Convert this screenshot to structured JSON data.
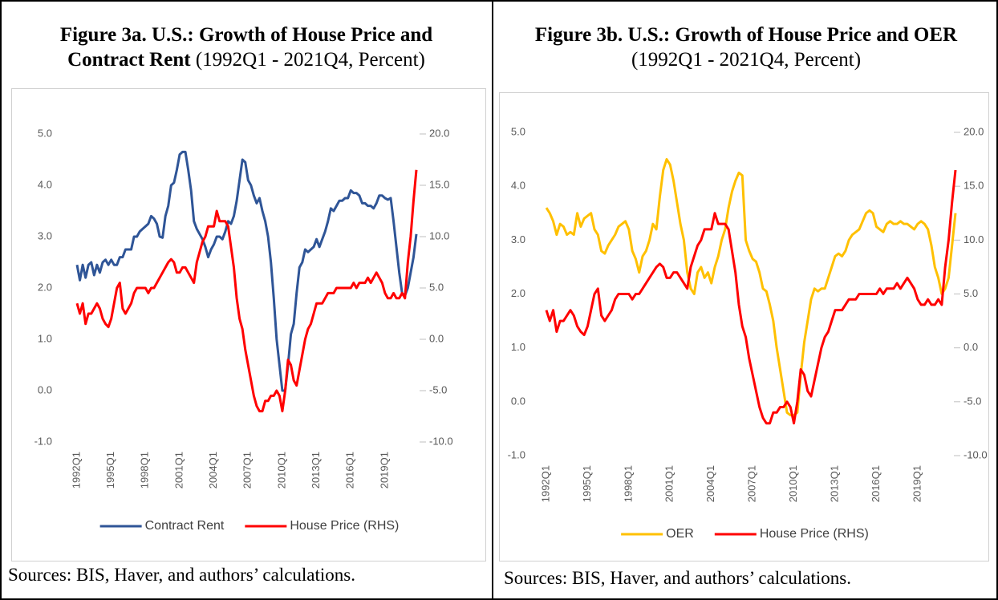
{
  "chart_data": [
    {
      "type": "line",
      "title": "Figure 3a. U.S.: Growth of House Price and Contract Rent",
      "subtitle": "(1992Q1 - 2021Q4, Percent)",
      "source": "Sources: BIS, Haver, and authors’ calculations.",
      "categories": [
        "1992Q1",
        null,
        null,
        null,
        null,
        null,
        null,
        null,
        null,
        null,
        null,
        null,
        "1995Q1",
        null,
        null,
        null,
        null,
        null,
        null,
        null,
        null,
        null,
        null,
        null,
        "1998Q1",
        null,
        null,
        null,
        null,
        null,
        null,
        null,
        null,
        null,
        null,
        null,
        "2001Q1",
        null,
        null,
        null,
        null,
        null,
        null,
        null,
        null,
        null,
        null,
        null,
        "2004Q1",
        null,
        null,
        null,
        null,
        null,
        null,
        null,
        null,
        null,
        null,
        null,
        "2007Q1",
        null,
        null,
        null,
        null,
        null,
        null,
        null,
        null,
        null,
        null,
        null,
        "2010Q1",
        null,
        null,
        null,
        null,
        null,
        null,
        null,
        null,
        null,
        null,
        null,
        "2013Q1",
        null,
        null,
        null,
        null,
        null,
        null,
        null,
        null,
        null,
        null,
        null,
        "2016Q1",
        null,
        null,
        null,
        null,
        null,
        null,
        null,
        null,
        null,
        null,
        null,
        "2019Q1",
        null,
        null,
        null,
        null,
        null,
        null,
        null,
        null,
        null,
        null,
        null
      ],
      "series": [
        {
          "name": "Contract Rent",
          "color": "#2f5597",
          "values": [
            2.45,
            2.15,
            2.45,
            2.2,
            2.45,
            2.5,
            2.25,
            2.45,
            2.3,
            2.5,
            2.55,
            2.45,
            2.55,
            2.45,
            2.45,
            2.6,
            2.6,
            2.75,
            2.75,
            2.75,
            3.0,
            3.0,
            3.1,
            3.15,
            3.2,
            3.25,
            3.4,
            3.35,
            3.25,
            3.0,
            2.98,
            3.4,
            3.6,
            4.0,
            4.05,
            4.3,
            4.6,
            4.65,
            4.65,
            4.3,
            3.9,
            3.3,
            3.15,
            3.05,
            2.95,
            2.8,
            2.6,
            2.75,
            2.85,
            3.0,
            3.0,
            2.95,
            3.1,
            3.3,
            3.25,
            3.4,
            3.7,
            4.1,
            4.5,
            4.45,
            4.1,
            4.0,
            3.8,
            3.65,
            3.75,
            3.5,
            3.3,
            3.0,
            2.5,
            1.8,
            1.0,
            0.5,
            0.0,
            0.0,
            0.5,
            1.1,
            1.3,
            1.9,
            2.4,
            2.5,
            2.75,
            2.7,
            2.75,
            2.8,
            2.95,
            2.8,
            2.95,
            3.1,
            3.3,
            3.55,
            3.5,
            3.6,
            3.7,
            3.7,
            3.75,
            3.75,
            3.9,
            3.85,
            3.85,
            3.8,
            3.65,
            3.65,
            3.6,
            3.6,
            3.55,
            3.65,
            3.8,
            3.8,
            3.75,
            3.72,
            3.75,
            3.3,
            2.8,
            2.3,
            1.9,
            1.85,
            2.0,
            2.3,
            2.6,
            3.05
          ]
        },
        {
          "name": "House Price (RHS)",
          "color": "#ff0000",
          "axis": "y2",
          "values": [
            3.5,
            2.5,
            3.5,
            1.5,
            2.5,
            2.5,
            3.0,
            3.5,
            3.0,
            2.0,
            1.5,
            1.2,
            2.0,
            3.5,
            5.0,
            5.5,
            3.0,
            2.5,
            3.0,
            3.5,
            4.5,
            5.0,
            5.0,
            5.0,
            5.0,
            4.5,
            5.0,
            5.0,
            5.5,
            6.0,
            6.5,
            7.0,
            7.5,
            7.8,
            7.5,
            6.5,
            6.5,
            7.0,
            7.0,
            6.5,
            6.0,
            5.5,
            7.5,
            8.5,
            9.5,
            10.0,
            11.0,
            11.0,
            11.0,
            12.5,
            11.5,
            11.5,
            11.5,
            11.0,
            9.0,
            7.0,
            4.0,
            2.0,
            1.0,
            -1.0,
            -2.5,
            -4.0,
            -5.5,
            -6.5,
            -7.0,
            -7.0,
            -6.0,
            -6.0,
            -5.5,
            -5.5,
            -5.0,
            -5.5,
            -7.0,
            -5.0,
            -2.0,
            -2.5,
            -4.0,
            -4.5,
            -3.0,
            -1.5,
            0.0,
            1.0,
            1.5,
            2.5,
            3.5,
            3.5,
            3.5,
            4.0,
            4.5,
            4.5,
            4.5,
            5.0,
            5.0,
            5.0,
            5.0,
            5.0,
            5.0,
            5.5,
            5.0,
            5.5,
            5.5,
            5.5,
            6.0,
            5.5,
            6.0,
            6.5,
            6.0,
            5.5,
            4.5,
            4.0,
            4.0,
            4.5,
            4.0,
            4.0,
            4.5,
            4.0,
            7.5,
            10.0,
            13.5,
            16.5
          ]
        }
      ],
      "ylim": [
        -1,
        5
      ],
      "yticks": [
        {
          "value": -1,
          "label": "-1.0"
        },
        {
          "value": 0,
          "label": "0.0"
        },
        {
          "value": 1,
          "label": "1.0"
        },
        {
          "value": 2,
          "label": "2.0"
        },
        {
          "value": 3,
          "label": "3.0"
        },
        {
          "value": 4,
          "label": "4.0"
        },
        {
          "value": 5,
          "label": "5.0"
        }
      ],
      "y2lim": [
        -10,
        20
      ],
      "y2ticks": [
        {
          "value": -10,
          "label": "-10.0"
        },
        {
          "value": -5,
          "label": "-5.0"
        },
        {
          "value": 0,
          "label": "0.0"
        },
        {
          "value": 5,
          "label": "5.0"
        },
        {
          "value": 10,
          "label": "10.0"
        },
        {
          "value": 15,
          "label": "15.0"
        },
        {
          "value": 20,
          "label": "20.0"
        }
      ],
      "grid": false,
      "legend": "bottom"
    },
    {
      "type": "line",
      "title": "Figure 3b. U.S.: Growth of House Price and OER",
      "subtitle": "(1992Q1 - 2021Q4, Percent)",
      "source": "Sources: BIS, Haver, and authors’ calculations.",
      "categories": [
        "1992Q1",
        null,
        null,
        null,
        null,
        null,
        null,
        null,
        null,
        null,
        null,
        null,
        "1995Q1",
        null,
        null,
        null,
        null,
        null,
        null,
        null,
        null,
        null,
        null,
        null,
        "1998Q1",
        null,
        null,
        null,
        null,
        null,
        null,
        null,
        null,
        null,
        null,
        null,
        "2001Q1",
        null,
        null,
        null,
        null,
        null,
        null,
        null,
        null,
        null,
        null,
        null,
        "2004Q1",
        null,
        null,
        null,
        null,
        null,
        null,
        null,
        null,
        null,
        null,
        null,
        "2007Q1",
        null,
        null,
        null,
        null,
        null,
        null,
        null,
        null,
        null,
        null,
        null,
        "2010Q1",
        null,
        null,
        null,
        null,
        null,
        null,
        null,
        null,
        null,
        null,
        null,
        "2013Q1",
        null,
        null,
        null,
        null,
        null,
        null,
        null,
        null,
        null,
        null,
        null,
        "2016Q1",
        null,
        null,
        null,
        null,
        null,
        null,
        null,
        null,
        null,
        null,
        null,
        "2019Q1",
        null,
        null,
        null,
        null,
        null,
        null,
        null,
        null,
        null,
        null,
        null
      ],
      "series": [
        {
          "name": "OER",
          "color": "#ffc000",
          "values": [
            3.6,
            3.5,
            3.35,
            3.1,
            3.3,
            3.25,
            3.1,
            3.15,
            3.1,
            3.5,
            3.25,
            3.4,
            3.45,
            3.5,
            3.2,
            3.1,
            2.8,
            2.75,
            2.9,
            3.0,
            3.1,
            3.25,
            3.3,
            3.35,
            3.2,
            2.8,
            2.65,
            2.4,
            2.7,
            2.8,
            3.0,
            3.3,
            3.2,
            3.8,
            4.3,
            4.5,
            4.4,
            4.1,
            3.7,
            3.3,
            3.0,
            2.4,
            2.1,
            2.0,
            2.4,
            2.5,
            2.3,
            2.4,
            2.2,
            2.5,
            2.7,
            3.0,
            3.2,
            3.6,
            3.9,
            4.1,
            4.25,
            4.2,
            3.0,
            2.8,
            2.65,
            2.6,
            2.4,
            2.1,
            2.05,
            1.8,
            1.5,
            1.0,
            0.6,
            0.2,
            -0.2,
            -0.25,
            -0.25,
            -0.2,
            0.5,
            1.1,
            1.5,
            1.9,
            2.1,
            2.05,
            2.1,
            2.1,
            2.3,
            2.5,
            2.7,
            2.75,
            2.7,
            2.8,
            3.0,
            3.1,
            3.15,
            3.2,
            3.35,
            3.5,
            3.55,
            3.5,
            3.25,
            3.2,
            3.15,
            3.3,
            3.35,
            3.3,
            3.3,
            3.35,
            3.3,
            3.3,
            3.25,
            3.2,
            3.3,
            3.35,
            3.3,
            3.2,
            2.9,
            2.5,
            2.3,
            2.0,
            2.1,
            2.3,
            2.9,
            3.5
          ]
        },
        {
          "name": "House Price (RHS)",
          "color": "#ff0000",
          "axis": "y2",
          "values": [
            3.5,
            2.5,
            3.5,
            1.5,
            2.5,
            2.5,
            3.0,
            3.5,
            3.0,
            2.0,
            1.5,
            1.2,
            2.0,
            3.5,
            5.0,
            5.5,
            3.0,
            2.5,
            3.0,
            3.5,
            4.5,
            5.0,
            5.0,
            5.0,
            5.0,
            4.5,
            5.0,
            5.0,
            5.5,
            6.0,
            6.5,
            7.0,
            7.5,
            7.8,
            7.5,
            6.5,
            6.5,
            7.0,
            7.0,
            6.5,
            6.0,
            5.5,
            7.5,
            8.5,
            9.5,
            10.0,
            11.0,
            11.0,
            11.0,
            12.5,
            11.5,
            11.5,
            11.5,
            11.0,
            9.0,
            7.0,
            4.0,
            2.0,
            1.0,
            -1.0,
            -2.5,
            -4.0,
            -5.5,
            -6.5,
            -7.0,
            -7.0,
            -6.0,
            -6.0,
            -5.5,
            -5.5,
            -5.0,
            -5.5,
            -7.0,
            -5.0,
            -2.0,
            -2.5,
            -4.0,
            -4.5,
            -3.0,
            -1.5,
            0.0,
            1.0,
            1.5,
            2.5,
            3.5,
            3.5,
            3.5,
            4.0,
            4.5,
            4.5,
            4.5,
            5.0,
            5.0,
            5.0,
            5.0,
            5.0,
            5.0,
            5.5,
            5.0,
            5.5,
            5.5,
            5.5,
            6.0,
            5.5,
            6.0,
            6.5,
            6.0,
            5.5,
            4.5,
            4.0,
            4.0,
            4.5,
            4.0,
            4.0,
            4.5,
            4.0,
            7.5,
            10.0,
            13.5,
            16.5
          ]
        }
      ],
      "ylim": [
        -1,
        5
      ],
      "yticks": [
        {
          "value": -1,
          "label": "-1.0"
        },
        {
          "value": 0,
          "label": "0.0"
        },
        {
          "value": 1,
          "label": "1.0"
        },
        {
          "value": 2,
          "label": "2.0"
        },
        {
          "value": 3,
          "label": "3.0"
        },
        {
          "value": 4,
          "label": "4.0"
        },
        {
          "value": 5,
          "label": "5.0"
        }
      ],
      "y2lim": [
        -10,
        20
      ],
      "y2ticks": [
        {
          "value": -10,
          "label": "-10.0"
        },
        {
          "value": -5,
          "label": "-5.0"
        },
        {
          "value": 0,
          "label": "0.0"
        },
        {
          "value": 5,
          "label": "5.0"
        },
        {
          "value": 10,
          "label": "10.0"
        },
        {
          "value": 15,
          "label": "15.0"
        },
        {
          "value": 20,
          "label": "20.0"
        }
      ],
      "grid": false,
      "legend": "bottom"
    }
  ]
}
